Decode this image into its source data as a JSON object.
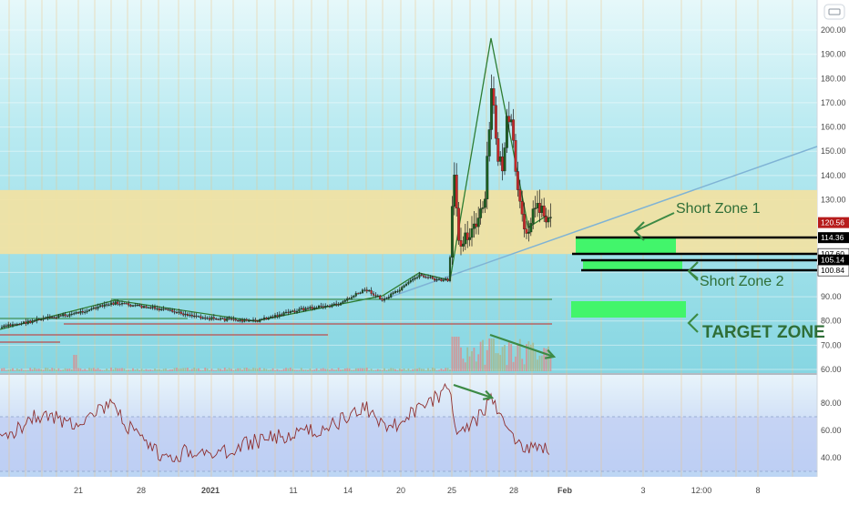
{
  "chart_data": {
    "type": "candlestick",
    "price_axis": {
      "ticks": [
        60,
        70,
        80,
        90,
        100,
        110,
        120,
        130,
        140,
        150,
        160,
        170,
        180,
        190,
        200
      ],
      "labels": [
        "60.00",
        "70.00",
        "80.00",
        "90.00",
        "",
        "",
        "",
        "130.00",
        "140.00",
        "150.00",
        "160.00",
        "170.00",
        "180.00",
        "190.00",
        "200.00"
      ]
    },
    "price_labels": [
      {
        "value": 120.56,
        "text": "120.56",
        "bg": "#b71c1c",
        "fg": "#ffffff"
      },
      {
        "value": 114.36,
        "text": "114.36",
        "bg": "#000000",
        "fg": "#ffffff"
      },
      {
        "value": 107.6,
        "text": "107.60",
        "bg": "#ffffff",
        "fg": "#000000"
      },
      {
        "value": 105.14,
        "text": "105.14",
        "bg": "#000000",
        "fg": "#ffffff"
      },
      {
        "value": 100.84,
        "text": "100.84",
        "bg": "#ffffff",
        "fg": "#000000"
      }
    ],
    "time_axis": {
      "labels": [
        "21",
        "28",
        "2021",
        "11",
        "14",
        "20",
        "25",
        "28",
        "Feb",
        "3",
        "12:00",
        "8"
      ],
      "bold": [
        "2021",
        "Feb"
      ]
    },
    "rsi_axis": {
      "ticks": [
        40,
        60,
        80
      ],
      "labels": [
        "40.00",
        "60.00",
        "80.00"
      ]
    },
    "zones": [
      {
        "name": "yellow-band",
        "from": 107.6,
        "to": 134,
        "color": "#f2e2a2"
      }
    ],
    "annotations": [
      {
        "text": "Short Zone 1"
      },
      {
        "text": "Short Zone 2"
      },
      {
        "text": "TARGET ZONE"
      }
    ],
    "colors": {
      "up": "#1b5e20",
      "down": "#c62828",
      "trend": "#7fb3d5",
      "zone": "#42f56b",
      "background_top": "#c6eff5",
      "background_bottom": "#8ed9e4"
    }
  }
}
